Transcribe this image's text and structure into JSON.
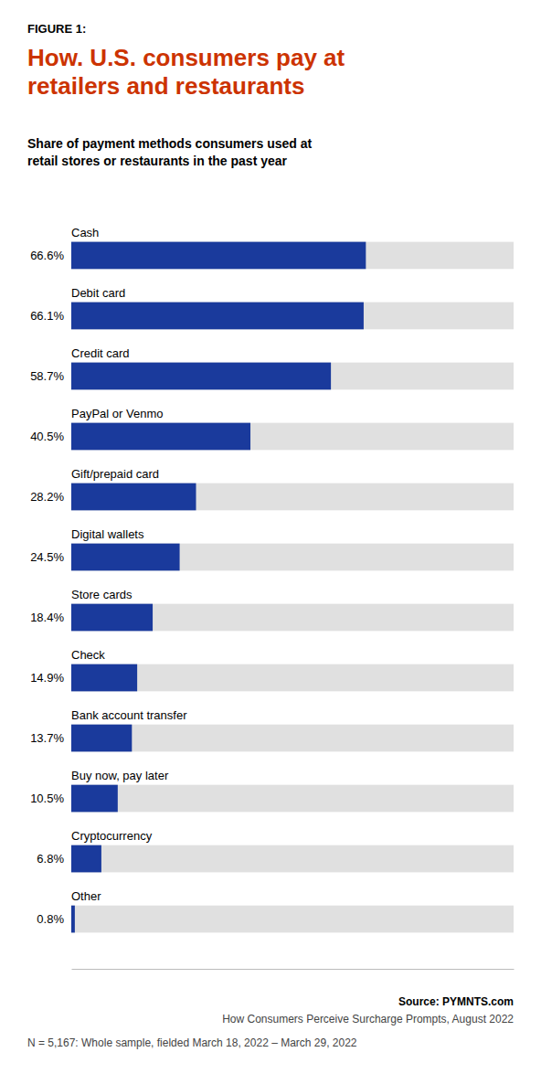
{
  "chart_data": {
    "type": "bar",
    "orientation": "horizontal",
    "title": "How. U.S. consumers pay at\nretailers and restaurants",
    "subtitle": "Share of payment methods consumers used at\nretail stores or restaurants in the past year",
    "annotations": [
      "FIGURE 1:",
      "Source: PYMNTS.com",
      "How Consumers Perceive Surcharge Prompts, August 2022",
      "N = 5,167: Whole sample, fielded March 18, 2022 – March 29, 2022"
    ],
    "categories": [
      "Cash",
      "Debit card",
      "Credit card",
      "PayPal or Venmo",
      "Gift/prepaid card",
      "Digital wallets",
      "Store cards",
      "Check",
      "Bank account transfer",
      "Buy now, pay later",
      "Cryptocurrency",
      "Other"
    ],
    "values": [
      66.6,
      66.1,
      58.7,
      40.5,
      28.2,
      24.5,
      18.4,
      14.9,
      13.7,
      10.5,
      6.8,
      0.8
    ],
    "value_labels": [
      "66.6%",
      "66.1%",
      "58.7%",
      "40.5%",
      "28.2%",
      "24.5%",
      "18.4%",
      "14.9%",
      "13.7%",
      "10.5%",
      "6.8%",
      "0.8%"
    ],
    "data_labels": true,
    "color": "#1a3a9c",
    "xlim": [
      0,
      100
    ],
    "tick_labels": false,
    "grid": false
  }
}
